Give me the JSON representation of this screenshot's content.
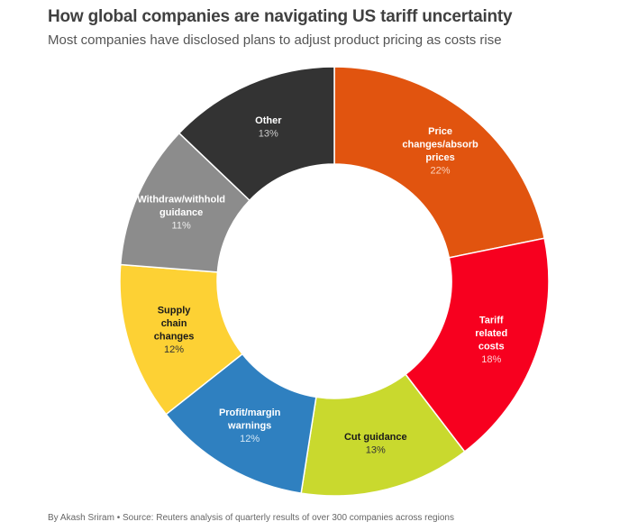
{
  "title": "How global companies are navigating US tariff uncertainty",
  "subtitle": "Most companies have disclosed plans to adjust product pricing as costs rise",
  "footer": {
    "author": "By Akash Sriram",
    "separator": "•",
    "source": "Source: Reuters analysis of quarterly results of over 300 companies across regions"
  },
  "chart_data": {
    "type": "pie",
    "variant": "donut",
    "title": "How global companies are navigating US tariff uncertainty",
    "subtitle": "Most companies have disclosed plans to adjust product pricing as costs rise",
    "slices": [
      {
        "label": "Price changes/absorb prices",
        "label_lines": [
          "Price",
          "changes/absorb",
          "prices"
        ],
        "value": 22,
        "display": "22%",
        "color": "#e1540f",
        "text_color": "#ffffff",
        "pct_color": "#fbd3bd"
      },
      {
        "label": "Tariff related costs",
        "label_lines": [
          "Tariff",
          "related",
          "costs"
        ],
        "value": 18,
        "display": "18%",
        "color": "#f7001f",
        "text_color": "#ffffff",
        "pct_color": "#fdd0d5"
      },
      {
        "label": "Cut guidance",
        "label_lines": [
          "Cut guidance"
        ],
        "value": 13,
        "display": "13%",
        "color": "#c9d92e",
        "text_color": "#1a1a1a",
        "pct_color": "#333333"
      },
      {
        "label": "Profit/margin warnings",
        "label_lines": [
          "Profit/margin",
          "warnings"
        ],
        "value": 12,
        "display": "12%",
        "color": "#2f80c0",
        "text_color": "#ffffff",
        "pct_color": "#d3e6f5"
      },
      {
        "label": "Supply chain changes",
        "label_lines": [
          "Supply",
          "chain",
          "changes"
        ],
        "value": 12,
        "display": "12%",
        "color": "#fdd134",
        "text_color": "#1a1a1a",
        "pct_color": "#333333"
      },
      {
        "label": "Withdraw/withhold guidance",
        "label_lines": [
          "Withdraw/withhold",
          "guidance"
        ],
        "value": 11,
        "display": "11%",
        "color": "#8c8c8c",
        "text_color": "#ffffff",
        "pct_color": "#eeeeee"
      },
      {
        "label": "Other",
        "label_lines": [
          "Other"
        ],
        "value": 13,
        "display": "13%",
        "color": "#333333",
        "text_color": "#ffffff",
        "pct_color": "#cccccc"
      }
    ],
    "unit": "%",
    "start_angle_deg": 0,
    "direction": "clockwise"
  }
}
